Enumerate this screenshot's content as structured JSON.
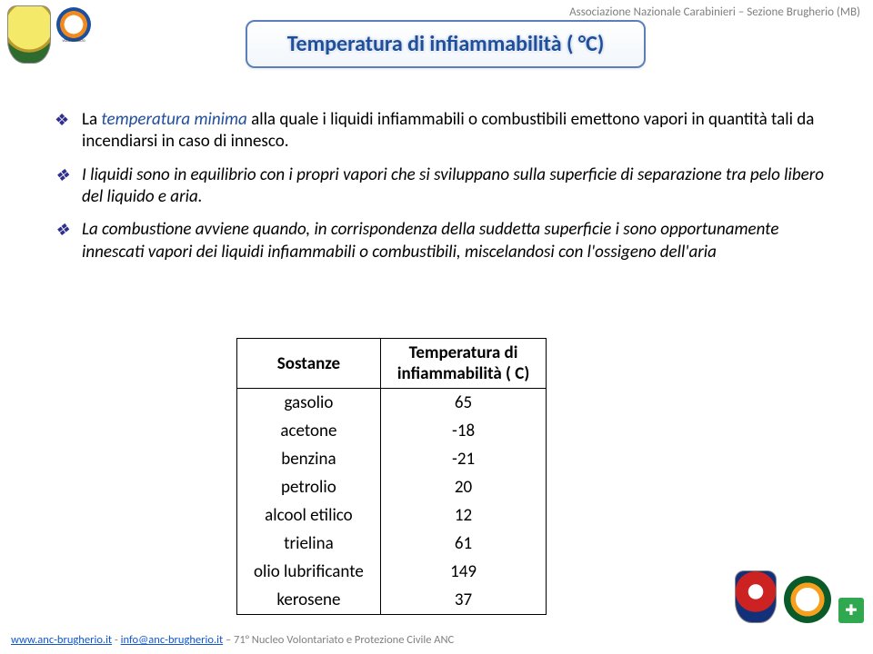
{
  "header": {
    "org": "Associazione Nazionale Carabinieri – Sezione Brugherio (MB)"
  },
  "title": "Temperatura di infiammabilità ( °C)",
  "bullets": {
    "b1_pre": "La ",
    "b1_emph": "temperatura minima ",
    "b1_post": "alla quale i liquidi infiammabili o combustibili emettono vapori in quantità tali da incendiarsi in caso di innesco.",
    "b2": "I liquidi sono in equilibrio con i propri vapori che si sviluppano sulla superficie di separazione tra pelo libero del liquido e aria.",
    "b3": "La combustione avviene quando, in corrispondenza della suddetta superficie i sono opportunamente innescati vapori dei liquidi infiammabili o combustibili, miscelandosi con l'ossigeno dell'aria"
  },
  "table": {
    "columns": [
      "Sostanze",
      "Temperatura di infiammabilità ( C)"
    ],
    "col1_header": "Sostanze",
    "col2_header_l1": "Temperatura di",
    "col2_header_l2": "infiammabilità ( C)",
    "rows": [
      {
        "s": "gasolio",
        "v": "65"
      },
      {
        "s": "acetone",
        "v": "-18"
      },
      {
        "s": "benzina",
        "v": "-21"
      },
      {
        "s": "petrolio",
        "v": "20"
      },
      {
        "s": "alcool etilico",
        "v": "12"
      },
      {
        "s": "trielina",
        "v": "61"
      },
      {
        "s": "olio lubrificante",
        "v": "149"
      },
      {
        "s": "kerosene",
        "v": "37"
      }
    ]
  },
  "footer": {
    "url": "www.anc-brugherio.it",
    "sep1": " - ",
    "email": "info@anc-brugherio.it",
    "sep2": " – ",
    "tail": "71° Nucleo Volontariato e Protezione Civile ANC"
  },
  "colors": {
    "title_text": "#1f4e9b",
    "bullet_icon": "#2f2f8f",
    "header_grey": "#7f7f7f",
    "link": "#1155cc"
  }
}
